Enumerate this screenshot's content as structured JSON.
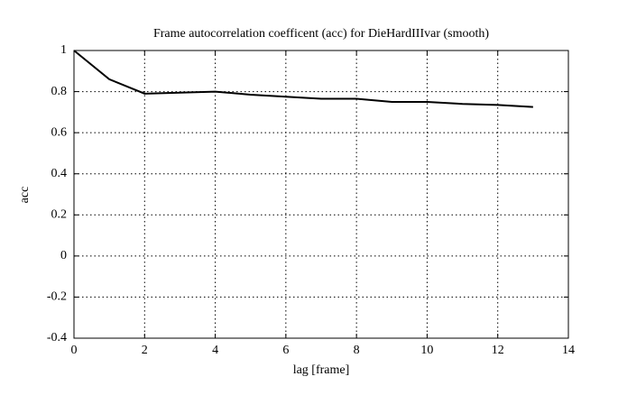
{
  "chart_data": {
    "type": "line",
    "title": "Frame autocorrelation coefficent (acc) for DieHardIIIvar (smooth)",
    "x_label": "lag [frame]",
    "y_label": "acc",
    "x": [
      0,
      1,
      2,
      3,
      4,
      5,
      6,
      7,
      8,
      9,
      10,
      11,
      12,
      13
    ],
    "series": [
      {
        "name": "acc",
        "color": "#000000",
        "values": [
          1,
          0.86,
          0.79,
          0.795,
          0.8,
          0.785,
          0.775,
          0.765,
          0.765,
          0.75,
          0.75,
          0.74,
          0.735,
          0.725
        ]
      }
    ],
    "xlim": [
      0,
      14
    ],
    "xticks": [
      0,
      2,
      4,
      6,
      8,
      10,
      12,
      14
    ],
    "ylim": [
      -0.4,
      1
    ],
    "yticks": [
      -0.4,
      -0.2,
      0,
      0.2,
      0.4,
      0.6,
      0.8,
      1
    ],
    "grid": true
  }
}
